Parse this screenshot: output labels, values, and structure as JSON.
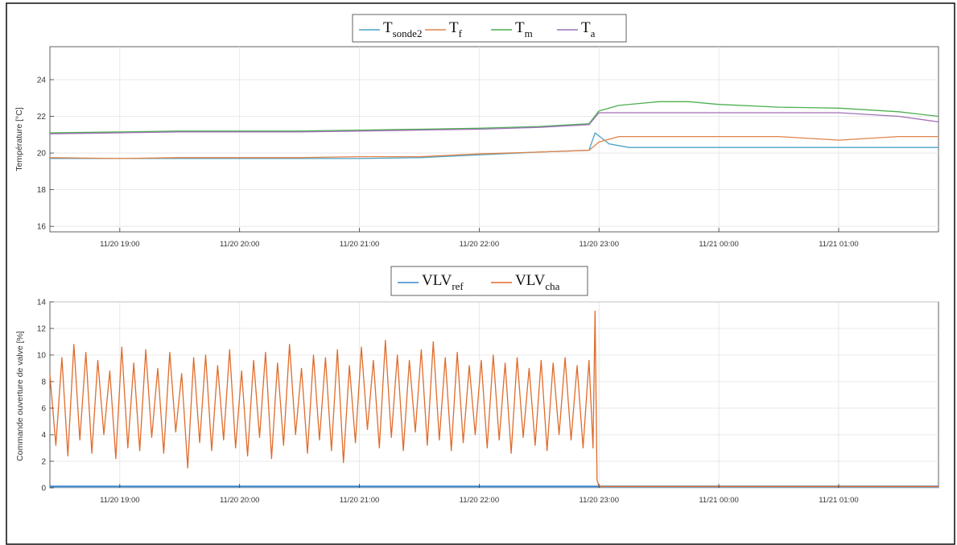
{
  "chart_data": [
    {
      "type": "line",
      "title": "",
      "xlabel": "",
      "ylabel": "Température [°C]",
      "x_start": "11/20 18:25",
      "x_end": "11/21 01:50",
      "xticks": [
        "11/20 19:00",
        "11/20 20:00",
        "11/20 21:00",
        "11/20 22:00",
        "11/20 23:00",
        "11/21 00:00",
        "11/21 01:00"
      ],
      "ylim": [
        15.7,
        25.8
      ],
      "yticks": [
        "16",
        "18",
        "20",
        "22",
        "24"
      ],
      "grid": true,
      "legend_position": "top-center",
      "legend_entries": [
        {
          "base": "T",
          "sub": "sonde2"
        },
        {
          "base": "T",
          "sub": "f"
        },
        {
          "base": "T",
          "sub": "m"
        },
        {
          "base": "T",
          "sub": "a"
        }
      ],
      "series": [
        {
          "name": "Tsonde2",
          "color": "#4aa3c7",
          "x": [
            "18:25",
            "19:00",
            "19:30",
            "20:00",
            "20:30",
            "21:00",
            "21:30",
            "22:00",
            "22:30",
            "22:55",
            "22:58",
            "23:05",
            "23:15",
            "23:30",
            "00:00",
            "00:30",
            "01:00",
            "01:30",
            "01:50"
          ],
          "y": [
            19.7,
            19.7,
            19.7,
            19.7,
            19.7,
            19.7,
            19.75,
            19.9,
            20.05,
            20.15,
            21.1,
            20.5,
            20.3,
            20.3,
            20.3,
            20.3,
            20.3,
            20.3,
            20.3
          ]
        },
        {
          "name": "Tf",
          "color": "#e0834a",
          "x": [
            "18:25",
            "19:00",
            "19:30",
            "20:00",
            "20:30",
            "21:00",
            "21:30",
            "22:00",
            "22:30",
            "22:55",
            "23:00",
            "23:10",
            "23:30",
            "00:00",
            "00:30",
            "01:00",
            "01:30",
            "01:50"
          ],
          "y": [
            19.75,
            19.7,
            19.75,
            19.75,
            19.75,
            19.8,
            19.8,
            19.95,
            20.05,
            20.15,
            20.6,
            20.9,
            20.9,
            20.9,
            20.9,
            20.7,
            20.9,
            20.9
          ]
        },
        {
          "name": "Tm",
          "color": "#4caf50",
          "x": [
            "18:25",
            "19:00",
            "19:30",
            "20:00",
            "20:30",
            "21:00",
            "21:30",
            "22:00",
            "22:30",
            "22:55",
            "23:00",
            "23:10",
            "23:30",
            "23:45",
            "00:00",
            "00:30",
            "01:00",
            "01:30",
            "01:50"
          ],
          "y": [
            21.1,
            21.15,
            21.2,
            21.2,
            21.2,
            21.25,
            21.3,
            21.35,
            21.45,
            21.6,
            22.3,
            22.6,
            22.8,
            22.8,
            22.65,
            22.5,
            22.45,
            22.25,
            22.0
          ]
        },
        {
          "name": "Ta",
          "color": "#a070b8",
          "x": [
            "18:25",
            "19:00",
            "19:30",
            "20:00",
            "20:30",
            "21:00",
            "21:30",
            "22:00",
            "22:30",
            "22:55",
            "23:00",
            "23:10",
            "23:30",
            "00:00",
            "00:30",
            "01:00",
            "01:30",
            "01:50"
          ],
          "y": [
            21.05,
            21.1,
            21.15,
            21.15,
            21.15,
            21.2,
            21.25,
            21.3,
            21.4,
            21.55,
            22.2,
            22.2,
            22.2,
            22.2,
            22.2,
            22.2,
            22.0,
            21.7
          ]
        }
      ]
    },
    {
      "type": "line",
      "title": "",
      "xlabel": "",
      "ylabel": "Commande ouverture de valve [%]",
      "x_start": "11/20 18:25",
      "x_end": "11/21 01:50",
      "xticks": [
        "11/20 19:00",
        "11/20 20:00",
        "11/20 21:00",
        "11/20 22:00",
        "11/20 23:00",
        "11/21 00:00",
        "11/21 01:00"
      ],
      "ylim": [
        0,
        14
      ],
      "yticks": [
        "0",
        "2",
        "4",
        "6",
        "8",
        "10",
        "12",
        "14"
      ],
      "grid": true,
      "legend_position": "top-center",
      "legend_entries": [
        {
          "base": "VLV",
          "sub": "ref"
        },
        {
          "base": "VLV",
          "sub": "cha"
        }
      ],
      "series": [
        {
          "name": "VLVref",
          "color": "#3a86c8",
          "x": [
            "18:25",
            "22:58",
            "01:50"
          ],
          "y": [
            0.1,
            0.1,
            0.1
          ]
        },
        {
          "name": "VLVcha",
          "color": "#e06b2a",
          "x": [
            "18:25",
            "18:28",
            "18:31",
            "18:34",
            "18:37",
            "18:40",
            "18:43",
            "18:46",
            "18:49",
            "18:52",
            "18:55",
            "18:58",
            "19:01",
            "19:04",
            "19:07",
            "19:10",
            "19:13",
            "19:16",
            "19:19",
            "19:22",
            "19:25",
            "19:28",
            "19:31",
            "19:34",
            "19:37",
            "19:40",
            "19:43",
            "19:46",
            "19:49",
            "19:52",
            "19:55",
            "19:58",
            "20:01",
            "20:04",
            "20:07",
            "20:10",
            "20:13",
            "20:16",
            "20:19",
            "20:22",
            "20:25",
            "20:28",
            "20:31",
            "20:34",
            "20:37",
            "20:40",
            "20:43",
            "20:46",
            "20:49",
            "20:52",
            "20:55",
            "20:58",
            "21:01",
            "21:04",
            "21:07",
            "21:10",
            "21:13",
            "21:16",
            "21:19",
            "21:22",
            "21:25",
            "21:28",
            "21:31",
            "21:34",
            "21:37",
            "21:40",
            "21:43",
            "21:46",
            "21:49",
            "21:52",
            "21:55",
            "21:58",
            "22:01",
            "22:04",
            "22:07",
            "22:10",
            "22:13",
            "22:16",
            "22:19",
            "22:22",
            "22:25",
            "22:28",
            "22:31",
            "22:34",
            "22:37",
            "22:40",
            "22:43",
            "22:46",
            "22:49",
            "22:52",
            "22:55",
            "22:57",
            "22:58",
            "22:59",
            "23:00",
            "23:05",
            "00:00",
            "01:00",
            "01:50"
          ],
          "y": [
            8.5,
            3.2,
            9.8,
            2.4,
            10.8,
            3.6,
            10.2,
            2.6,
            9.6,
            4.0,
            8.8,
            2.2,
            10.6,
            3.0,
            9.4,
            2.8,
            10.4,
            3.8,
            9.0,
            2.6,
            10.2,
            4.2,
            8.6,
            1.5,
            9.8,
            3.4,
            10.0,
            2.8,
            9.2,
            3.6,
            10.4,
            3.0,
            8.8,
            2.4,
            9.6,
            3.8,
            10.2,
            2.2,
            9.4,
            3.2,
            10.8,
            4.0,
            9.0,
            2.6,
            10.0,
            3.6,
            9.8,
            2.8,
            10.4,
            1.9,
            9.2,
            3.4,
            10.6,
            4.4,
            9.6,
            3.0,
            11.1,
            3.8,
            10.0,
            2.8,
            9.6,
            4.2,
            10.4,
            3.2,
            11.0,
            3.6,
            9.8,
            2.8,
            10.2,
            3.4,
            9.2,
            4.0,
            9.6,
            3.0,
            10.0,
            3.6,
            9.4,
            2.6,
            9.8,
            3.8,
            9.0,
            3.2,
            9.6,
            2.8,
            9.4,
            4.0,
            9.8,
            3.6,
            9.2,
            3.0,
            9.6,
            3.0,
            13.3,
            0.6,
            0.1,
            0.1,
            0.1,
            0.1,
            0.1
          ]
        }
      ]
    }
  ]
}
